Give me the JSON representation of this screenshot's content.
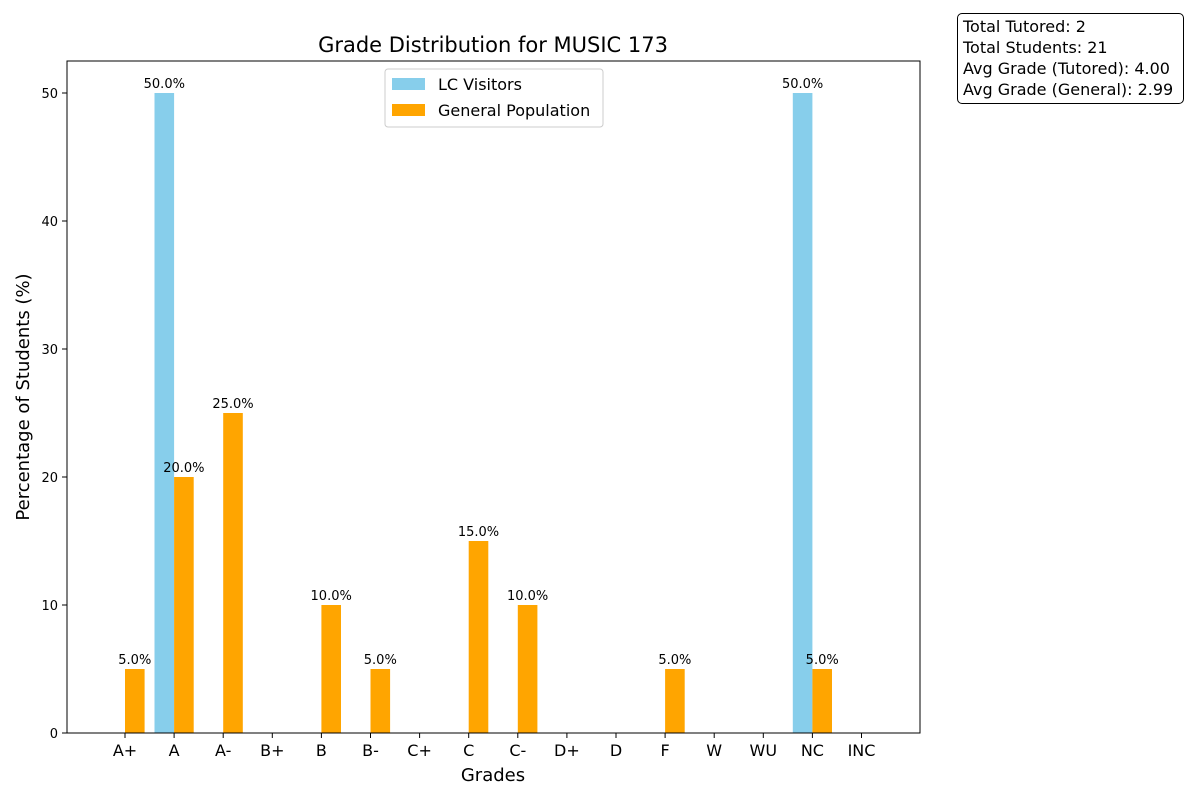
{
  "chart_data": {
    "type": "bar",
    "title": "Grade Distribution for MUSIC 173",
    "xlabel": "Grades",
    "ylabel": "Percentage of Students (%)",
    "categories": [
      "A+",
      "A",
      "A-",
      "B+",
      "B",
      "B-",
      "C+",
      "C",
      "C-",
      "D+",
      "D",
      "F",
      "W",
      "WU",
      "NC",
      "INC"
    ],
    "ylim": [
      0,
      52.5
    ],
    "yticks": [
      0,
      10,
      20,
      30,
      40,
      50
    ],
    "grid": false,
    "legend_position": "upper-center",
    "series": [
      {
        "name": "LC Visitors",
        "color": "#87CEEB",
        "values": [
          0,
          50.0,
          0,
          0,
          0,
          0,
          0,
          0,
          0,
          0,
          0,
          0,
          0,
          0,
          50.0,
          0
        ]
      },
      {
        "name": "General Population",
        "color": "#FFA500",
        "values": [
          5.0,
          20.0,
          25.0,
          0,
          10.0,
          5.0,
          0,
          15.0,
          10.0,
          0,
          0,
          5.0,
          0,
          0,
          5.0,
          0
        ]
      }
    ]
  },
  "stats": {
    "total_tutored": "Total Tutored: 2",
    "total_students": "Total Students: 21",
    "avg_tutored": "Avg Grade (Tutored): 4.00",
    "avg_general": "Avg Grade (General): 2.99"
  }
}
